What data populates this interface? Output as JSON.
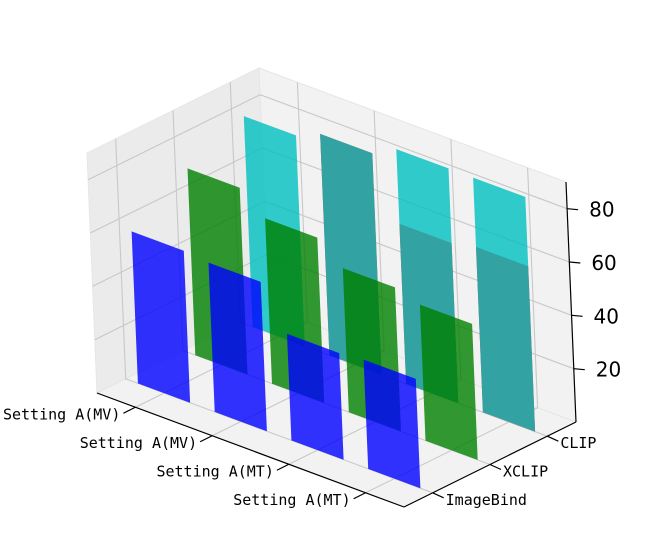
{
  "chart_data": {
    "type": "bar",
    "projection": "3d",
    "title": "",
    "xlabel": "",
    "ylabel": "",
    "zlabel": "",
    "x_categories": [
      "Setting A(MV)",
      "Setting A(MV)",
      "Setting A(MT)",
      "Setting A(MT)"
    ],
    "y_categories": [
      "ImageBind",
      "XCLIP",
      "CLIP"
    ],
    "zlim": [
      0,
      90
    ],
    "z_ticks": [
      "20",
      "40",
      "60",
      "80"
    ],
    "grid": true,
    "legend": "none",
    "series": [
      {
        "y_category": "ImageBind",
        "color": "#0000ff",
        "values": [
          57,
          56,
          40,
          41
        ]
      },
      {
        "y_category": "XCLIP",
        "color": "#008000",
        "values": [
          70,
          62,
          54,
          51
        ]
      },
      {
        "y_category": "CLIP",
        "color": "#ff0000",
        "values": [
          null,
          83,
          60,
          62
        ]
      },
      {
        "y_category": "CLIP",
        "color": "#00bfbf",
        "values": [
          79,
          83,
          88,
          88
        ]
      }
    ]
  }
}
